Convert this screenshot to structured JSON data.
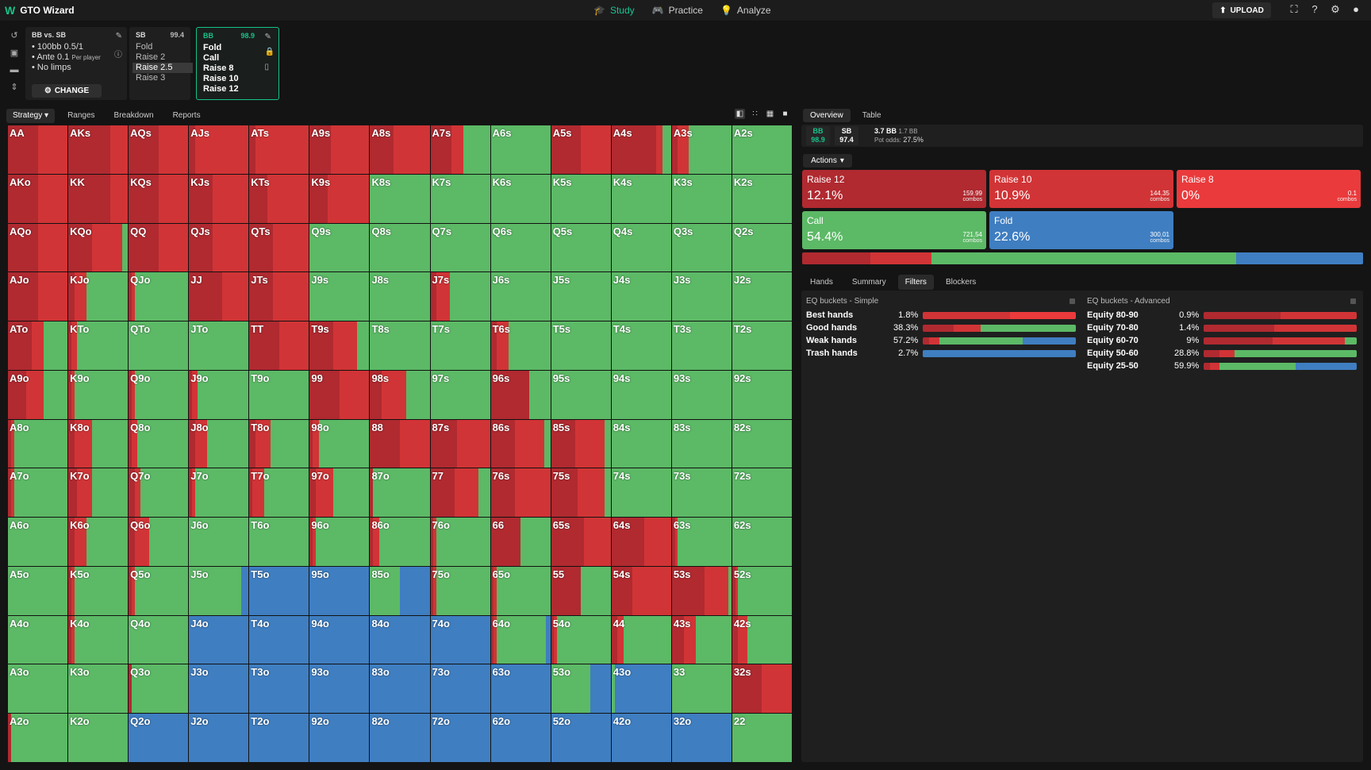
{
  "app": {
    "title": "GTO Wizard"
  },
  "nav": [
    {
      "label": "Study",
      "icon": "graduation-cap-icon",
      "active": true
    },
    {
      "label": "Practice",
      "icon": "gamepad-icon",
      "active": false
    },
    {
      "label": "Analyze",
      "icon": "lightbulb-icon",
      "active": false
    }
  ],
  "upload_label": "UPLOAD",
  "settings": {
    "title": "BB vs. SB",
    "lines": [
      "100bb 0.5/1",
      "Ante 0.1",
      "No limps"
    ],
    "ante_note": "Per player",
    "change_label": "CHANGE"
  },
  "sb_panel": {
    "pos": "SB",
    "stack": "99.4",
    "options": [
      "Fold",
      "Raise 2",
      "Raise 2.5",
      "Raise 3"
    ],
    "selected": 2
  },
  "bb_panel": {
    "pos": "BB",
    "stack": "98.9",
    "options": [
      "Fold",
      "Call",
      "Raise 8",
      "Raise 10",
      "Raise 12"
    ]
  },
  "tabs": [
    "Strategy",
    "Ranges",
    "Breakdown",
    "Reports"
  ],
  "right_tabs": [
    "Overview",
    "Table"
  ],
  "info": {
    "bb_label": "BB",
    "bb_stack": "98.9",
    "sb_label": "SB",
    "sb_stack": "97.4",
    "pot": "3.7 BB",
    "bet": "1.7 BB",
    "pot_odds_label": "Pot odds:",
    "pot_odds": "27.5%"
  },
  "actions_label": "Actions",
  "colors": {
    "r12": "#b02a30",
    "r10": "#d13436",
    "r8": "#ea3a3c",
    "call": "#5cb966",
    "fold": "#3f7ec1"
  },
  "actions": [
    {
      "name": "Raise 12",
      "pct": "12.1%",
      "combos": "159.99",
      "unit": "combos",
      "color": "#b02a30"
    },
    {
      "name": "Raise 10",
      "pct": "10.9%",
      "combos": "144.35",
      "unit": "combos",
      "color": "#d13436"
    },
    {
      "name": "Raise 8",
      "pct": "0%",
      "combos": "0.1",
      "unit": "combos",
      "color": "#ea3a3c"
    },
    {
      "name": "Call",
      "pct": "54.4%",
      "combos": "721.54",
      "unit": "combos",
      "color": "#5cb966"
    },
    {
      "name": "Fold",
      "pct": "22.6%",
      "combos": "300.01",
      "unit": "combos",
      "color": "#3f7ec1"
    }
  ],
  "totals": [
    12.1,
    10.9,
    0,
    54.4,
    22.6
  ],
  "sub_tabs": [
    "Hands",
    "Summary",
    "Filters",
    "Blockers"
  ],
  "filters": {
    "simple_title": "EQ buckets - Simple",
    "advanced_title": "EQ buckets - Advanced",
    "simple": [
      {
        "label": "Best hands",
        "value": "1.8%",
        "mix": [
          0,
          57,
          43,
          0,
          0
        ]
      },
      {
        "label": "Good hands",
        "value": "38.3%",
        "mix": [
          20,
          18,
          0,
          62,
          0
        ]
      },
      {
        "label": "Weak hands",
        "value": "57.2%",
        "mix": [
          4,
          7,
          0,
          54,
          35
        ]
      },
      {
        "label": "Trash hands",
        "value": "2.7%",
        "mix": [
          0,
          0,
          0,
          0,
          100
        ]
      }
    ],
    "advanced": [
      {
        "label": "Equity 80-90",
        "value": "0.9%",
        "mix": [
          50,
          50,
          0,
          0,
          0
        ]
      },
      {
        "label": "Equity 70-80",
        "value": "1.4%",
        "mix": [
          46,
          54,
          0,
          0,
          0
        ]
      },
      {
        "label": "Equity 60-70",
        "value": "9%",
        "mix": [
          45,
          47,
          0,
          8,
          0
        ]
      },
      {
        "label": "Equity 50-60",
        "value": "28.8%",
        "mix": [
          10,
          10,
          0,
          80,
          0
        ]
      },
      {
        "label": "Equity 25-50",
        "value": "59.9%",
        "mix": [
          4,
          6,
          0,
          50,
          40
        ]
      }
    ]
  },
  "hands": [
    [
      "AA",
      "AKs",
      "AQs",
      "AJs",
      "ATs",
      "A9s",
      "A8s",
      "A7s",
      "A6s",
      "A5s",
      "A4s",
      "A3s",
      "A2s"
    ],
    [
      "AKo",
      "KK",
      "KQs",
      "KJs",
      "KTs",
      "K9s",
      "K8s",
      "K7s",
      "K6s",
      "K5s",
      "K4s",
      "K3s",
      "K2s"
    ],
    [
      "AQo",
      "KQo",
      "QQ",
      "QJs",
      "QTs",
      "Q9s",
      "Q8s",
      "Q7s",
      "Q6s",
      "Q5s",
      "Q4s",
      "Q3s",
      "Q2s"
    ],
    [
      "AJo",
      "KJo",
      "QJo",
      "JJ",
      "JTs",
      "J9s",
      "J8s",
      "J7s",
      "J6s",
      "J5s",
      "J4s",
      "J3s",
      "J2s"
    ],
    [
      "ATo",
      "KTo",
      "QTo",
      "JTo",
      "TT",
      "T9s",
      "T8s",
      "T7s",
      "T6s",
      "T5s",
      "T4s",
      "T3s",
      "T2s"
    ],
    [
      "A9o",
      "K9o",
      "Q9o",
      "J9o",
      "T9o",
      "99",
      "98s",
      "97s",
      "96s",
      "95s",
      "94s",
      "93s",
      "92s"
    ],
    [
      "A8o",
      "K8o",
      "Q8o",
      "J8o",
      "T8o",
      "98o",
      "88",
      "87s",
      "86s",
      "85s",
      "84s",
      "83s",
      "82s"
    ],
    [
      "A7o",
      "K7o",
      "Q7o",
      "J7o",
      "T7o",
      "97o",
      "87o",
      "77",
      "76s",
      "75s",
      "74s",
      "73s",
      "72s"
    ],
    [
      "A6o",
      "K6o",
      "Q6o",
      "J6o",
      "T6o",
      "96o",
      "86o",
      "76o",
      "66",
      "65s",
      "64s",
      "63s",
      "62s"
    ],
    [
      "A5o",
      "K5o",
      "Q5o",
      "J5o",
      "T5o",
      "95o",
      "85o",
      "75o",
      "65o",
      "55",
      "54s",
      "53s",
      "52s"
    ],
    [
      "A4o",
      "K4o",
      "Q4o",
      "J4o",
      "T4o",
      "94o",
      "84o",
      "74o",
      "64o",
      "54o",
      "44",
      "43s",
      "42s"
    ],
    [
      "A3o",
      "K3o",
      "Q3o",
      "J3o",
      "T3o",
      "93o",
      "83o",
      "73o",
      "63o",
      "53o",
      "43o",
      "33",
      "32s"
    ],
    [
      "A2o",
      "K2o",
      "Q2o",
      "J2o",
      "T2o",
      "92o",
      "82o",
      "72o",
      "62o",
      "52o",
      "42o",
      "32o",
      "22"
    ]
  ],
  "mix": [
    [
      [
        50,
        50,
        0,
        0,
        0
      ],
      [
        70,
        30,
        0,
        0,
        0
      ],
      [
        50,
        50,
        0,
        0,
        0
      ],
      [
        10,
        90,
        0,
        0,
        0
      ],
      [
        10,
        90,
        0,
        0,
        0
      ],
      [
        35,
        65,
        0,
        0,
        0
      ],
      [
        40,
        60,
        0,
        0,
        0
      ],
      [
        35,
        20,
        0,
        45,
        0
      ],
      [
        0,
        0,
        0,
        100,
        0
      ],
      [
        50,
        50,
        0,
        0,
        0
      ],
      [
        75,
        10,
        0,
        15,
        0
      ],
      [
        10,
        18,
        0,
        72,
        0
      ],
      [
        0,
        0,
        0,
        100,
        0
      ]
    ],
    [
      [
        50,
        50,
        0,
        0,
        0
      ],
      [
        70,
        30,
        0,
        0,
        0
      ],
      [
        50,
        50,
        0,
        0,
        0
      ],
      [
        40,
        60,
        0,
        0,
        0
      ],
      [
        30,
        70,
        0,
        0,
        0
      ],
      [
        30,
        70,
        0,
        0,
        0
      ],
      [
        0,
        0,
        0,
        100,
        0
      ],
      [
        0,
        0,
        0,
        100,
        0
      ],
      [
        0,
        0,
        0,
        100,
        0
      ],
      [
        0,
        0,
        0,
        100,
        0
      ],
      [
        0,
        0,
        0,
        100,
        0
      ],
      [
        0,
        0,
        0,
        100,
        0
      ],
      [
        0,
        0,
        0,
        100,
        0
      ]
    ],
    [
      [
        50,
        50,
        0,
        0,
        0
      ],
      [
        40,
        50,
        0,
        10,
        0
      ],
      [
        50,
        50,
        0,
        0,
        0
      ],
      [
        40,
        60,
        0,
        0,
        0
      ],
      [
        40,
        60,
        0,
        0,
        0
      ],
      [
        0,
        0,
        0,
        100,
        0
      ],
      [
        0,
        0,
        0,
        100,
        0
      ],
      [
        0,
        0,
        0,
        100,
        0
      ],
      [
        0,
        0,
        0,
        100,
        0
      ],
      [
        0,
        0,
        0,
        100,
        0
      ],
      [
        0,
        0,
        0,
        100,
        0
      ],
      [
        0,
        0,
        0,
        100,
        0
      ],
      [
        0,
        0,
        0,
        100,
        0
      ]
    ],
    [
      [
        50,
        50,
        0,
        0,
        0
      ],
      [
        10,
        20,
        0,
        70,
        0
      ],
      [
        5,
        5,
        0,
        90,
        0
      ],
      [
        55,
        45,
        0,
        0,
        0
      ],
      [
        40,
        60,
        0,
        0,
        0
      ],
      [
        0,
        0,
        0,
        100,
        0
      ],
      [
        0,
        0,
        0,
        100,
        0
      ],
      [
        10,
        22,
        0,
        68,
        0
      ],
      [
        0,
        0,
        0,
        100,
        0
      ],
      [
        0,
        0,
        0,
        100,
        0
      ],
      [
        0,
        0,
        0,
        100,
        0
      ],
      [
        0,
        0,
        0,
        100,
        0
      ],
      [
        0,
        0,
        0,
        100,
        0
      ]
    ],
    [
      [
        40,
        20,
        0,
        40,
        0
      ],
      [
        5,
        10,
        0,
        85,
        0
      ],
      [
        0,
        0,
        0,
        100,
        0
      ],
      [
        0,
        0,
        0,
        100,
        0
      ],
      [
        50,
        50,
        0,
        0,
        0
      ],
      [
        40,
        40,
        0,
        20,
        0
      ],
      [
        0,
        0,
        0,
        100,
        0
      ],
      [
        0,
        0,
        0,
        100,
        0
      ],
      [
        10,
        20,
        0,
        70,
        0
      ],
      [
        0,
        0,
        0,
        100,
        0
      ],
      [
        0,
        0,
        0,
        100,
        0
      ],
      [
        0,
        0,
        0,
        100,
        0
      ],
      [
        0,
        0,
        0,
        100,
        0
      ]
    ],
    [
      [
        30,
        30,
        0,
        40,
        0
      ],
      [
        5,
        5,
        0,
        90,
        0
      ],
      [
        5,
        5,
        0,
        90,
        0
      ],
      [
        5,
        10,
        0,
        85,
        0
      ],
      [
        0,
        0,
        0,
        100,
        0
      ],
      [
        50,
        50,
        0,
        0,
        0
      ],
      [
        20,
        40,
        0,
        40,
        0
      ],
      [
        0,
        0,
        0,
        100,
        0
      ],
      [
        65,
        0,
        0,
        35,
        0
      ],
      [
        0,
        0,
        0,
        100,
        0
      ],
      [
        0,
        0,
        0,
        100,
        0
      ],
      [
        0,
        0,
        0,
        100,
        0
      ],
      [
        0,
        0,
        0,
        100,
        0
      ]
    ],
    [
      [
        5,
        5,
        0,
        90,
        0
      ],
      [
        10,
        30,
        0,
        60,
        0
      ],
      [
        5,
        10,
        0,
        85,
        0
      ],
      [
        10,
        20,
        0,
        70,
        0
      ],
      [
        10,
        25,
        0,
        65,
        0
      ],
      [
        5,
        10,
        0,
        85,
        0
      ],
      [
        50,
        50,
        0,
        0,
        0
      ],
      [
        45,
        55,
        0,
        0,
        0
      ],
      [
        40,
        50,
        0,
        10,
        0
      ],
      [
        40,
        50,
        0,
        10,
        0
      ],
      [
        0,
        0,
        0,
        100,
        0
      ],
      [
        0,
        0,
        0,
        100,
        0
      ],
      [
        0,
        0,
        0,
        100,
        0
      ]
    ],
    [
      [
        5,
        5,
        0,
        90,
        0
      ],
      [
        15,
        25,
        0,
        60,
        0
      ],
      [
        10,
        10,
        0,
        80,
        0
      ],
      [
        5,
        5,
        0,
        90,
        0
      ],
      [
        5,
        20,
        0,
        75,
        0
      ],
      [
        10,
        30,
        0,
        60,
        0
      ],
      [
        5,
        0,
        0,
        95,
        0
      ],
      [
        40,
        40,
        0,
        20,
        0
      ],
      [
        40,
        60,
        0,
        0,
        0
      ],
      [
        45,
        45,
        0,
        10,
        0
      ],
      [
        0,
        0,
        0,
        100,
        0
      ],
      [
        0,
        0,
        0,
        100,
        0
      ],
      [
        0,
        0,
        0,
        100,
        0
      ]
    ],
    [
      [
        0,
        0,
        0,
        100,
        0
      ],
      [
        10,
        20,
        0,
        70,
        0
      ],
      [
        10,
        25,
        0,
        65,
        0
      ],
      [
        0,
        0,
        0,
        100,
        0
      ],
      [
        0,
        0,
        0,
        100,
        0
      ],
      [
        5,
        5,
        0,
        90,
        0
      ],
      [
        5,
        10,
        0,
        85,
        0
      ],
      [
        5,
        5,
        0,
        90,
        0
      ],
      [
        50,
        0,
        0,
        50,
        0
      ],
      [
        55,
        45,
        0,
        0,
        0
      ],
      [
        55,
        45,
        0,
        0,
        0
      ],
      [
        5,
        5,
        0,
        90,
        0
      ],
      [
        0,
        0,
        0,
        100,
        0
      ]
    ],
    [
      [
        0,
        0,
        0,
        100,
        0
      ],
      [
        5,
        5,
        0,
        90,
        0
      ],
      [
        5,
        5,
        0,
        90,
        0
      ],
      [
        0,
        0,
        0,
        88,
        12
      ],
      [
        0,
        0,
        0,
        0,
        100
      ],
      [
        0,
        0,
        0,
        0,
        100
      ],
      [
        0,
        0,
        0,
        50,
        50
      ],
      [
        5,
        5,
        0,
        90,
        0
      ],
      [
        5,
        5,
        0,
        90,
        0
      ],
      [
        50,
        0,
        0,
        50,
        0
      ],
      [
        35,
        65,
        0,
        0,
        0
      ],
      [
        55,
        40,
        0,
        5,
        0
      ],
      [
        5,
        5,
        0,
        90,
        0
      ]
    ],
    [
      [
        0,
        0,
        0,
        100,
        0
      ],
      [
        5,
        5,
        0,
        90,
        0
      ],
      [
        0,
        0,
        0,
        100,
        0
      ],
      [
        0,
        0,
        0,
        0,
        100
      ],
      [
        0,
        0,
        0,
        0,
        100
      ],
      [
        0,
        0,
        0,
        0,
        100
      ],
      [
        0,
        0,
        0,
        0,
        100
      ],
      [
        0,
        0,
        0,
        0,
        100
      ],
      [
        5,
        5,
        0,
        82,
        8
      ],
      [
        5,
        5,
        0,
        90,
        0
      ],
      [
        10,
        10,
        0,
        80,
        0
      ],
      [
        20,
        20,
        0,
        60,
        0
      ],
      [
        10,
        15,
        0,
        75,
        0
      ]
    ],
    [
      [
        0,
        0,
        0,
        100,
        0
      ],
      [
        0,
        0,
        0,
        100,
        0
      ],
      [
        5,
        0,
        0,
        95,
        0
      ],
      [
        0,
        0,
        0,
        0,
        100
      ],
      [
        0,
        0,
        0,
        0,
        100
      ],
      [
        0,
        0,
        0,
        0,
        100
      ],
      [
        0,
        0,
        0,
        0,
        100
      ],
      [
        0,
        0,
        0,
        0,
        100
      ],
      [
        0,
        0,
        0,
        0,
        100
      ],
      [
        0,
        0,
        0,
        66,
        34
      ],
      [
        0,
        0,
        0,
        5,
        95
      ],
      [
        0,
        0,
        0,
        100,
        0
      ],
      [
        50,
        50,
        0,
        0,
        0
      ]
    ],
    [
      [
        5,
        0,
        0,
        95,
        0
      ],
      [
        0,
        0,
        0,
        100,
        0
      ],
      [
        0,
        0,
        0,
        0,
        100
      ],
      [
        0,
        0,
        0,
        0,
        100
      ],
      [
        0,
        0,
        0,
        0,
        100
      ],
      [
        0,
        0,
        0,
        0,
        100
      ],
      [
        0,
        0,
        0,
        0,
        100
      ],
      [
        0,
        0,
        0,
        0,
        100
      ],
      [
        0,
        0,
        0,
        0,
        100
      ],
      [
        0,
        0,
        0,
        0,
        100
      ],
      [
        0,
        0,
        0,
        0,
        100
      ],
      [
        0,
        0,
        0,
        0,
        100
      ],
      [
        0,
        0,
        0,
        100,
        0
      ]
    ]
  ]
}
